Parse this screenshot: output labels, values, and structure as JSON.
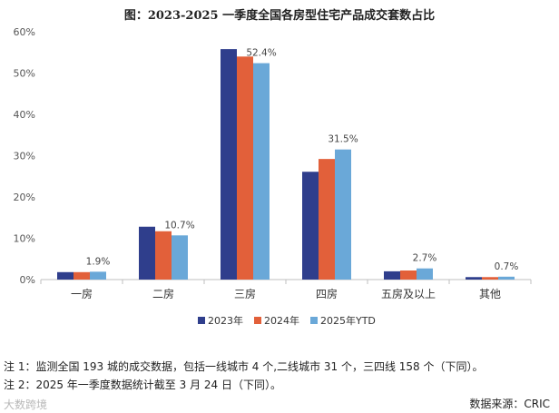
{
  "title": "图：2023-2025 一季度全国各房型住宅产品成交套数占比",
  "chart_data": {
    "type": "bar",
    "categories": [
      "一房",
      "二房",
      "三房",
      "四房",
      "五房及以上",
      "其他"
    ],
    "series": [
      {
        "name": "2023年",
        "color": "#2f3e8c",
        "values": [
          1.8,
          12.8,
          55.8,
          26.1,
          2.0,
          0.6
        ]
      },
      {
        "name": "2024年",
        "color": "#e2603a",
        "values": [
          1.8,
          11.7,
          54.0,
          29.2,
          2.2,
          0.6
        ]
      },
      {
        "name": "2025年YTD",
        "color": "#6aa8d8",
        "values": [
          1.9,
          10.7,
          52.4,
          31.5,
          2.7,
          0.7
        ]
      }
    ],
    "data_labels": [
      "1.9%",
      "10.7%",
      "52.4%",
      "31.5%",
      "2.7%",
      "0.7%"
    ],
    "yticks": [
      "0%",
      "10%",
      "20%",
      "30%",
      "40%",
      "50%",
      "60%"
    ],
    "ylim": [
      0,
      60
    ],
    "legend": "bottom-center",
    "grid": false
  },
  "notes": [
    "注 1：监测全国 193 城的成交数据，包括一线城市 4 个,二线城市 31 个，三四线 158 个（下同）。",
    "注 2：2025 年一季度数据统计截至 3 月 24 日（下同）。"
  ],
  "source": "数据来源：CRIC",
  "watermark": "大数跨境"
}
